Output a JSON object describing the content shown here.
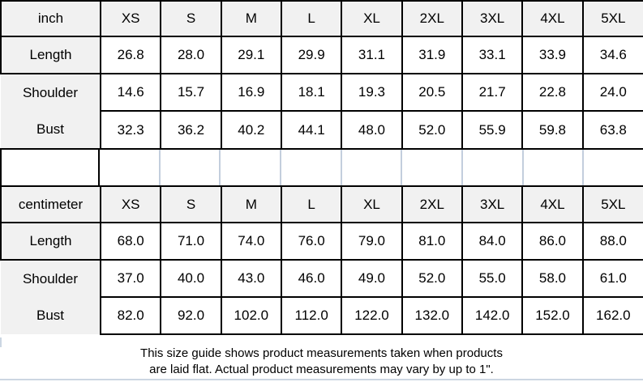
{
  "colors": {
    "border": "#000000",
    "header_bg": "#f1f1f1",
    "gridline": "#c3cedd",
    "footer_rule": "#ccd6e2"
  },
  "size_guide": {
    "columns": [
      "XS",
      "S",
      "M",
      "L",
      "XL",
      "2XL",
      "3XL",
      "4XL",
      "5XL"
    ],
    "tables": [
      {
        "unit": "inch",
        "rows": [
          {
            "label": "Length",
            "values": [
              "26.8",
              "28.0",
              "29.1",
              "29.9",
              "31.1",
              "31.9",
              "33.1",
              "33.9",
              "34.6"
            ]
          },
          {
            "label": "Shoulder",
            "values": [
              "14.6",
              "15.7",
              "16.9",
              "18.1",
              "19.3",
              "20.5",
              "21.7",
              "22.8",
              "24.0"
            ]
          },
          {
            "label": "Bust",
            "values": [
              "32.3",
              "36.2",
              "40.2",
              "44.1",
              "48.0",
              "52.0",
              "55.9",
              "59.8",
              "63.8"
            ]
          }
        ]
      },
      {
        "unit": "centimeter",
        "rows": [
          {
            "label": "Length",
            "values": [
              "68.0",
              "71.0",
              "74.0",
              "76.0",
              "79.0",
              "81.0",
              "84.0",
              "86.0",
              "88.0"
            ]
          },
          {
            "label": "Shoulder",
            "values": [
              "37.0",
              "40.0",
              "43.0",
              "46.0",
              "49.0",
              "52.0",
              "55.0",
              "58.0",
              "61.0"
            ]
          },
          {
            "label": "Bust",
            "values": [
              "82.0",
              "92.0",
              "102.0",
              "112.0",
              "122.0",
              "132.0",
              "142.0",
              "152.0",
              "162.0"
            ]
          }
        ]
      }
    ],
    "footer": {
      "line1": "This size guide shows product measurements taken when products",
      "line2": "are laid flat. Actual product measurements may vary by up to 1\"."
    }
  },
  "chart_data": [
    {
      "type": "table",
      "columns": [
        "inch",
        "XS",
        "S",
        "M",
        "L",
        "XL",
        "2XL",
        "3XL",
        "4XL",
        "5XL"
      ],
      "rows": [
        [
          "Length",
          26.8,
          28.0,
          29.1,
          29.9,
          31.1,
          31.9,
          33.1,
          33.9,
          34.6
        ],
        [
          "Shoulder",
          14.6,
          15.7,
          16.9,
          18.1,
          19.3,
          20.5,
          21.7,
          22.8,
          24.0
        ],
        [
          "Bust",
          32.3,
          36.2,
          40.2,
          44.1,
          48.0,
          52.0,
          55.9,
          59.8,
          63.8
        ]
      ]
    },
    {
      "type": "table",
      "columns": [
        "centimeter",
        "XS",
        "S",
        "M",
        "L",
        "XL",
        "2XL",
        "3XL",
        "4XL",
        "5XL"
      ],
      "rows": [
        [
          "Length",
          68.0,
          71.0,
          74.0,
          76.0,
          79.0,
          81.0,
          84.0,
          86.0,
          88.0
        ],
        [
          "Shoulder",
          37.0,
          40.0,
          43.0,
          46.0,
          49.0,
          52.0,
          55.0,
          58.0,
          61.0
        ],
        [
          "Bust",
          82.0,
          92.0,
          102.0,
          112.0,
          122.0,
          132.0,
          142.0,
          152.0,
          162.0
        ]
      ]
    }
  ]
}
